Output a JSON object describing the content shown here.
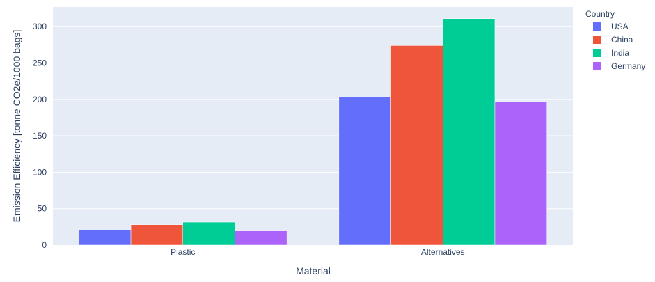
{
  "chart_data": {
    "type": "bar",
    "barmode": "group",
    "categories": [
      "Plastic",
      "Alternatives"
    ],
    "series": [
      {
        "name": "USA",
        "color": "#636efa",
        "values": [
          20.5,
          203
        ]
      },
      {
        "name": "China",
        "color": "#ef553b",
        "values": [
          28,
          274
        ]
      },
      {
        "name": "India",
        "color": "#00cc96",
        "values": [
          31.5,
          311
        ]
      },
      {
        "name": "Germany",
        "color": "#ab63fa",
        "values": [
          19.5,
          197
        ]
      }
    ],
    "xlabel": "Material",
    "ylabel": "Emission Efficiency  [tonne CO2e/1000 bags]",
    "ylim": [
      0,
      327
    ],
    "yticks": [
      0,
      50,
      100,
      150,
      200,
      250,
      300
    ],
    "legend_title": "Country",
    "legend_position": "top-right",
    "grid": true,
    "plot_background": "#e5ecf6"
  }
}
